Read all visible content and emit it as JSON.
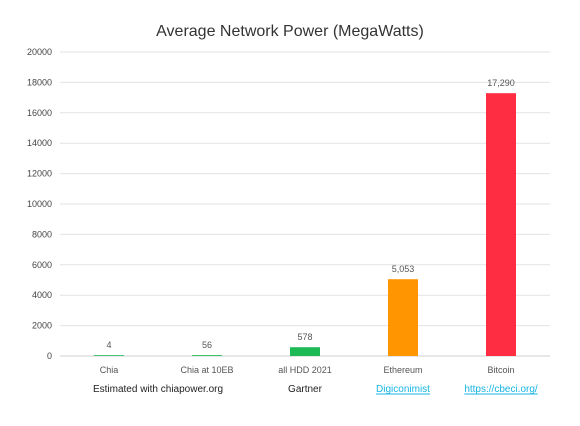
{
  "chart_data": {
    "type": "bar",
    "title": "Average Network Power (MegaWatts)",
    "categories": [
      "Chia",
      "Chia at 10EB",
      "all HDD 2021",
      "Ethereum",
      "Bitcoin"
    ],
    "values": [
      4,
      56,
      578,
      5053,
      17290
    ],
    "value_labels": [
      "4",
      "56",
      "578",
      "5,053",
      "17,290"
    ],
    "colors": [
      "#1db954",
      "#1db954",
      "#1db954",
      "#ff9500",
      "#ff2d41"
    ],
    "ylim": [
      0,
      20000
    ],
    "yticks": [
      "0",
      "2000",
      "4000",
      "6000",
      "8000",
      "10000",
      "12000",
      "14000",
      "16000",
      "18000",
      "20000"
    ],
    "grid": true,
    "sources": [
      {
        "label": "Estimated with chiapower.org",
        "link": false
      },
      {
        "label": "Gartner",
        "link": false
      },
      {
        "label": "Digiconimist",
        "link": true
      },
      {
        "label": "https://cbeci.org/",
        "link": true
      }
    ]
  }
}
